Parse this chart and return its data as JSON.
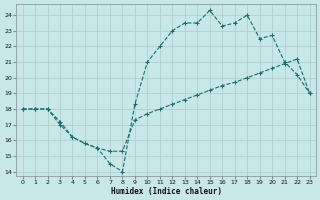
{
  "xlabel": "Humidex (Indice chaleur)",
  "bg_color": "#c8e8e8",
  "grid_color": "#aacccc",
  "line_color": "#1a6b6b",
  "xlim": [
    -0.5,
    23.5
  ],
  "ylim": [
    13.7,
    24.7
  ],
  "yticks": [
    14,
    15,
    16,
    17,
    18,
    19,
    20,
    21,
    22,
    23,
    24
  ],
  "xticks": [
    0,
    1,
    2,
    3,
    4,
    5,
    6,
    7,
    8,
    9,
    10,
    11,
    12,
    13,
    14,
    15,
    16,
    17,
    18,
    19,
    20,
    21,
    22,
    23
  ],
  "upper_line_x": [
    0,
    1,
    2,
    3,
    4,
    5,
    6,
    7,
    8,
    9,
    10,
    11,
    12,
    13,
    14,
    15,
    16,
    17,
    18,
    19,
    20,
    21,
    22,
    23
  ],
  "upper_line_y": [
    18.0,
    18.0,
    18.0,
    17.0,
    16.2,
    15.8,
    15.5,
    14.5,
    14.0,
    18.3,
    21.0,
    22.0,
    23.0,
    23.5,
    23.5,
    24.3,
    23.3,
    23.5,
    24.0,
    22.5,
    22.7,
    21.0,
    20.2,
    19.0
  ],
  "lower_line_x": [
    0,
    1,
    2,
    3,
    4,
    5,
    6,
    7,
    8,
    9,
    10,
    11,
    12,
    13,
    14,
    15,
    16,
    17,
    18,
    19,
    20,
    21,
    22,
    23
  ],
  "lower_line_y": [
    18.0,
    18.0,
    18.0,
    17.2,
    16.2,
    15.8,
    15.5,
    15.3,
    15.3,
    17.3,
    17.7,
    18.0,
    18.3,
    18.6,
    18.9,
    19.2,
    19.5,
    19.7,
    20.0,
    20.3,
    20.6,
    20.9,
    21.2,
    19.0
  ]
}
